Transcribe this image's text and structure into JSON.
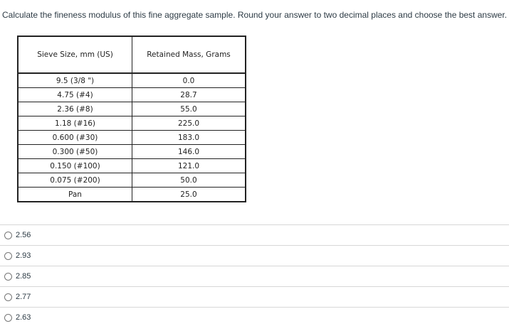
{
  "question": "Calculate the fineness modulus of this fine aggregate sample. Round your answer to two decimal places and choose the best answer.",
  "table": {
    "headers": [
      "Sieve Size, mm (US)",
      "Retained Mass, Grams"
    ],
    "rows": [
      [
        "9.5 (3/8 \")",
        "0.0"
      ],
      [
        "4.75 (#4)",
        "28.7"
      ],
      [
        "2.36 (#8)",
        "55.0"
      ],
      [
        "1.18 (#16)",
        "225.0"
      ],
      [
        "0.600 (#30)",
        "183.0"
      ],
      [
        "0.300 (#50)",
        "146.0"
      ],
      [
        "0.150 (#100)",
        "121.0"
      ],
      [
        "0.075 (#200)",
        "50.0"
      ],
      [
        "Pan",
        "25.0"
      ]
    ]
  },
  "options": [
    "2.56",
    "2.93",
    "2.85",
    "2.77",
    "2.63"
  ]
}
